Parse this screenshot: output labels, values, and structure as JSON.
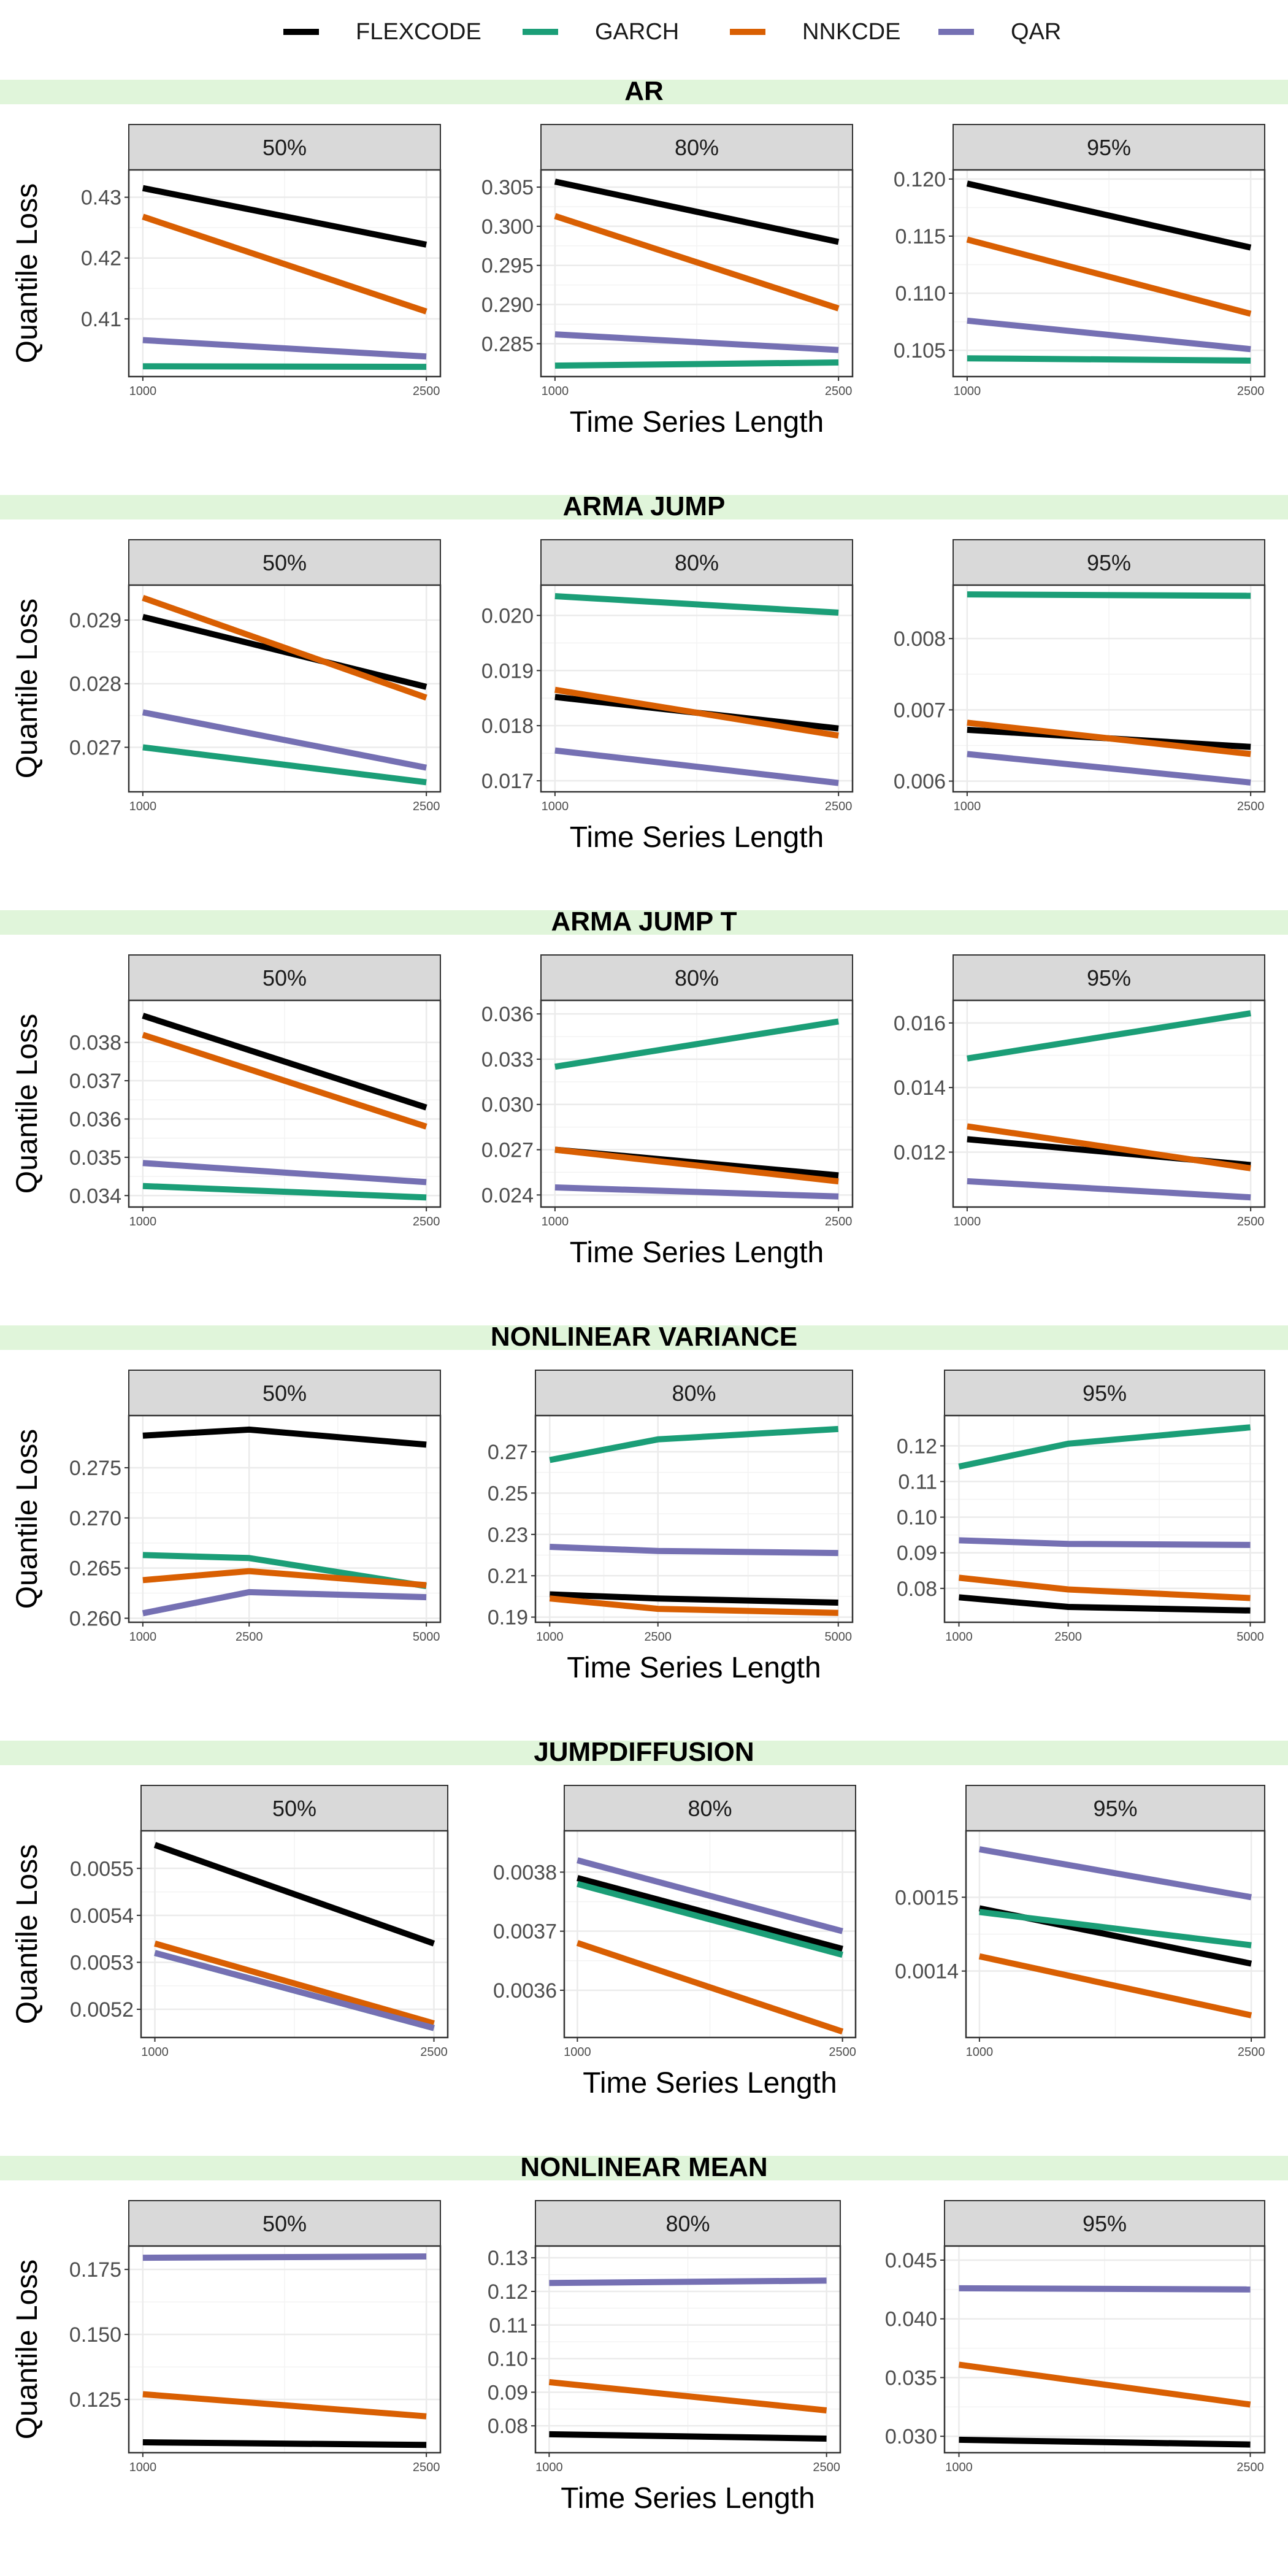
{
  "legend": {
    "entries": [
      {
        "name": "FLEXCODE",
        "color": "#000000"
      },
      {
        "name": "GARCH",
        "color": "#1B9E77"
      },
      {
        "name": "NNKCDE",
        "color": "#D95F02"
      },
      {
        "name": "QAR",
        "color": "#7570B3"
      }
    ],
    "placement": "top"
  },
  "colors": {
    "strip_bg": "#D9D9D9",
    "section_band": "#E0F5DA",
    "grid": "#EBEBEB",
    "panel_border": "#333333"
  },
  "axis_text": {
    "ylabel": "Quantile Loss",
    "xlabel": "Time Series Length"
  },
  "chart_data": [
    {
      "type": "line",
      "title": "AR",
      "facet_labels": [
        "50%",
        "80%",
        "95%"
      ],
      "x": [
        1000,
        2500
      ],
      "xticks": [
        "1000",
        "2500"
      ],
      "panels": [
        {
          "label": "50%",
          "ylim": [
            0.4005,
            0.4345
          ],
          "yticks": [
            0.41,
            0.42,
            0.43
          ],
          "yticklabels": [
            "0.41",
            "0.42",
            "0.43"
          ],
          "series": [
            {
              "name": "FLEXCODE",
              "values": [
                0.4315,
                0.4222
              ]
            },
            {
              "name": "GARCH",
              "values": [
                0.4022,
                0.4021
              ]
            },
            {
              "name": "NNKCDE",
              "values": [
                0.4268,
                0.4112
              ]
            },
            {
              "name": "QAR",
              "values": [
                0.4065,
                0.4038
              ]
            }
          ]
        },
        {
          "label": "80%",
          "ylim": [
            0.2808,
            0.3072
          ],
          "yticks": [
            0.285,
            0.29,
            0.295,
            0.3,
            0.305
          ],
          "yticklabels": [
            "0.285",
            "0.290",
            "0.295",
            "0.300",
            "0.305"
          ],
          "series": [
            {
              "name": "FLEXCODE",
              "values": [
                0.3057,
                0.298
              ]
            },
            {
              "name": "GARCH",
              "values": [
                0.2822,
                0.2826
              ]
            },
            {
              "name": "NNKCDE",
              "values": [
                0.3013,
                0.2895
              ]
            },
            {
              "name": "QAR",
              "values": [
                0.2862,
                0.2842
              ]
            }
          ]
        },
        {
          "label": "95%",
          "ylim": [
            0.1027,
            0.1208
          ],
          "yticks": [
            0.105,
            0.11,
            0.115,
            0.12
          ],
          "yticklabels": [
            "0.105",
            "0.110",
            "0.115",
            "0.120"
          ],
          "series": [
            {
              "name": "FLEXCODE",
              "values": [
                0.1196,
                0.114
              ]
            },
            {
              "name": "GARCH",
              "values": [
                0.1043,
                0.1041
              ]
            },
            {
              "name": "NNKCDE",
              "values": [
                0.1147,
                0.1082
              ]
            },
            {
              "name": "QAR",
              "values": [
                0.1076,
                0.1051
              ]
            }
          ]
        }
      ]
    },
    {
      "type": "line",
      "title": "ARMA JUMP",
      "facet_labels": [
        "50%",
        "80%",
        "95%"
      ],
      "x": [
        1000,
        2500
      ],
      "xticks": [
        "1000",
        "2500"
      ],
      "panels": [
        {
          "label": "50%",
          "ylim": [
            0.0263,
            0.02955
          ],
          "yticks": [
            0.027,
            0.028,
            0.029
          ],
          "yticklabels": [
            "0.027",
            "0.028",
            "0.029"
          ],
          "series": [
            {
              "name": "FLEXCODE",
              "values": [
                0.02905,
                0.02795
              ]
            },
            {
              "name": "GARCH",
              "values": [
                0.027,
                0.02645
              ]
            },
            {
              "name": "NNKCDE",
              "values": [
                0.02935,
                0.02778
              ]
            },
            {
              "name": "QAR",
              "values": [
                0.02755,
                0.02668
              ]
            }
          ]
        },
        {
          "label": "80%",
          "ylim": [
            0.0168,
            0.02055
          ],
          "yticks": [
            0.017,
            0.018,
            0.019,
            0.02
          ],
          "yticklabels": [
            "0.017",
            "0.018",
            "0.019",
            "0.020"
          ],
          "series": [
            {
              "name": "FLEXCODE",
              "values": [
                0.01852,
                0.01795
              ]
            },
            {
              "name": "GARCH",
              "values": [
                0.02035,
                0.02005
              ]
            },
            {
              "name": "NNKCDE",
              "values": [
                0.01865,
                0.01782
              ]
            },
            {
              "name": "QAR",
              "values": [
                0.01755,
                0.01696
              ]
            }
          ]
        },
        {
          "label": "95%",
          "ylim": [
            0.00585,
            0.00875
          ],
          "yticks": [
            0.006,
            0.007,
            0.008
          ],
          "yticklabels": [
            "0.006",
            "0.007",
            "0.008"
          ],
          "series": [
            {
              "name": "FLEXCODE",
              "values": [
                0.00672,
                0.00648
              ]
            },
            {
              "name": "GARCH",
              "values": [
                0.00862,
                0.0086
              ]
            },
            {
              "name": "NNKCDE",
              "values": [
                0.00682,
                0.00638
              ]
            },
            {
              "name": "QAR",
              "values": [
                0.00638,
                0.00598
              ]
            }
          ]
        }
      ]
    },
    {
      "type": "line",
      "title": "ARMA JUMP T",
      "facet_labels": [
        "50%",
        "80%",
        "95%"
      ],
      "x": [
        1000,
        2500
      ],
      "xticks": [
        "1000",
        "2500"
      ],
      "panels": [
        {
          "label": "50%",
          "ylim": [
            0.0337,
            0.0391
          ],
          "yticks": [
            0.034,
            0.035,
            0.036,
            0.037,
            0.038
          ],
          "yticklabels": [
            "0.034",
            "0.035",
            "0.036",
            "0.037",
            "0.038"
          ],
          "series": [
            {
              "name": "FLEXCODE",
              "values": [
                0.0387,
                0.0363
              ]
            },
            {
              "name": "GARCH",
              "values": [
                0.03425,
                0.03395
              ]
            },
            {
              "name": "NNKCDE",
              "values": [
                0.0382,
                0.0358
              ]
            },
            {
              "name": "QAR",
              "values": [
                0.03485,
                0.03435
              ]
            }
          ]
        },
        {
          "label": "80%",
          "ylim": [
            0.0232,
            0.0369
          ],
          "yticks": [
            0.024,
            0.027,
            0.03,
            0.033,
            0.036
          ],
          "yticklabels": [
            "0.024",
            "0.027",
            "0.030",
            "0.033",
            "0.036"
          ],
          "series": [
            {
              "name": "FLEXCODE",
              "values": [
                0.027,
                0.0253
              ]
            },
            {
              "name": "GARCH",
              "values": [
                0.0325,
                0.0355
              ]
            },
            {
              "name": "NNKCDE",
              "values": [
                0.027,
                0.0249
              ]
            },
            {
              "name": "QAR",
              "values": [
                0.0245,
                0.0239
              ]
            }
          ]
        },
        {
          "label": "95%",
          "ylim": [
            0.0103,
            0.0167
          ],
          "yticks": [
            0.012,
            0.014,
            0.016
          ],
          "yticklabels": [
            "0.012",
            "0.014",
            "0.016"
          ],
          "series": [
            {
              "name": "FLEXCODE",
              "values": [
                0.0124,
                0.0116
              ]
            },
            {
              "name": "GARCH",
              "values": [
                0.0149,
                0.0163
              ]
            },
            {
              "name": "NNKCDE",
              "values": [
                0.0128,
                0.0115
              ]
            },
            {
              "name": "QAR",
              "values": [
                0.0111,
                0.0106
              ]
            }
          ]
        }
      ]
    },
    {
      "type": "line",
      "title": "NONLINEAR VARIANCE",
      "facet_labels": [
        "50%",
        "80%",
        "95%"
      ],
      "x": [
        1000,
        2500,
        5000
      ],
      "xticks": [
        "1000",
        "2500",
        "5000"
      ],
      "panels": [
        {
          "label": "50%",
          "ylim": [
            0.2596,
            0.2802
          ],
          "yticks": [
            0.26,
            0.265,
            0.27,
            0.275
          ],
          "yticklabels": [
            "0.260",
            "0.265",
            "0.270",
            "0.275"
          ],
          "series": [
            {
              "name": "FLEXCODE",
              "values": [
                0.2782,
                0.2788,
                0.2773
              ]
            },
            {
              "name": "GARCH",
              "values": [
                0.2663,
                0.266,
                0.2632
              ]
            },
            {
              "name": "NNKCDE",
              "values": [
                0.2638,
                0.2647,
                0.2633
              ]
            },
            {
              "name": "QAR",
              "values": [
                0.2605,
                0.2626,
                0.2621
              ]
            }
          ]
        },
        {
          "label": "80%",
          "ylim": [
            0.1875,
            0.2875
          ],
          "yticks": [
            0.19,
            0.21,
            0.23,
            0.25,
            0.27
          ],
          "yticklabels": [
            "0.19",
            "0.21",
            "0.23",
            "0.25",
            "0.27"
          ],
          "series": [
            {
              "name": "FLEXCODE",
              "values": [
                0.201,
                0.199,
                0.197
              ]
            },
            {
              "name": "GARCH",
              "values": [
                0.266,
                0.276,
                0.281
              ]
            },
            {
              "name": "NNKCDE",
              "values": [
                0.199,
                0.194,
                0.192
              ]
            },
            {
              "name": "QAR",
              "values": [
                0.224,
                0.222,
                0.221
              ]
            }
          ]
        },
        {
          "label": "95%",
          "ylim": [
            0.0705,
            0.1285
          ],
          "yticks": [
            0.08,
            0.09,
            0.1,
            0.11,
            0.12
          ],
          "yticklabels": [
            "0.08",
            "0.09",
            "0.10",
            "0.11",
            "0.12"
          ],
          "series": [
            {
              "name": "FLEXCODE",
              "values": [
                0.0775,
                0.0748,
                0.0738
              ]
            },
            {
              "name": "GARCH",
              "values": [
                0.1142,
                0.1206,
                0.1252
              ]
            },
            {
              "name": "NNKCDE",
              "values": [
                0.083,
                0.0797,
                0.0773
              ]
            },
            {
              "name": "QAR",
              "values": [
                0.0935,
                0.0925,
                0.0922
              ]
            }
          ]
        }
      ]
    },
    {
      "type": "line",
      "title": "JUMPDIFFUSION",
      "facet_labels": [
        "50%",
        "80%",
        "95%"
      ],
      "x": [
        1000,
        2500
      ],
      "xticks": [
        "1000",
        "2500"
      ],
      "panels": [
        {
          "label": "50%",
          "ylim": [
            0.00514,
            0.00558
          ],
          "yticks": [
            0.0052,
            0.0053,
            0.0054,
            0.0055
          ],
          "yticklabels": [
            "0.0052",
            "0.0053",
            "0.0054",
            "0.0055"
          ],
          "series": [
            {
              "name": "FLEXCODE",
              "values": [
                0.00555,
                0.00534
              ]
            },
            {
              "name": "GARCH",
              "values": [
                0.00532,
                0.00516
              ]
            },
            {
              "name": "NNKCDE",
              "values": [
                0.00534,
                0.00517
              ]
            },
            {
              "name": "QAR",
              "values": [
                0.00532,
                0.00516
              ]
            }
          ]
        },
        {
          "label": "80%",
          "ylim": [
            0.00352,
            0.00387
          ],
          "yticks": [
            0.0036,
            0.0037,
            0.0038
          ],
          "yticklabels": [
            "0.0036",
            "0.0037",
            "0.0038"
          ],
          "series": [
            {
              "name": "FLEXCODE",
              "values": [
                0.00379,
                0.00367
              ]
            },
            {
              "name": "GARCH",
              "values": [
                0.00378,
                0.00366
              ]
            },
            {
              "name": "NNKCDE",
              "values": [
                0.00368,
                0.00353
              ]
            },
            {
              "name": "QAR",
              "values": [
                0.00382,
                0.0037
              ]
            }
          ]
        },
        {
          "label": "95%",
          "ylim": [
            0.00131,
            0.00159
          ],
          "yticks": [
            0.0014,
            0.0015
          ],
          "yticklabels": [
            "0.0014",
            "0.0015"
          ],
          "series": [
            {
              "name": "FLEXCODE",
              "values": [
                0.001485,
                0.00141
              ]
            },
            {
              "name": "GARCH",
              "values": [
                0.00148,
                0.001435
              ]
            },
            {
              "name": "NNKCDE",
              "values": [
                0.00142,
                0.00134
              ]
            },
            {
              "name": "QAR",
              "values": [
                0.001565,
                0.0015
              ]
            }
          ]
        }
      ]
    },
    {
      "type": "line",
      "title": "NONLINEAR MEAN",
      "facet_labels": [
        "50%",
        "80%",
        "95%"
      ],
      "x": [
        1000,
        2500
      ],
      "xticks": [
        "1000",
        "2500"
      ],
      "panels": [
        {
          "label": "50%",
          "ylim": [
            0.1045,
            0.184
          ],
          "yticks": [
            0.125,
            0.15,
            0.175
          ],
          "yticklabels": [
            "0.125",
            "0.150",
            "0.175"
          ],
          "series": [
            {
              "name": "FLEXCODE",
              "values": [
                0.1085,
                0.1075
              ]
            },
            {
              "name": "NNKCDE",
              "values": [
                0.127,
                0.1185
              ]
            },
            {
              "name": "QAR",
              "values": [
                0.1795,
                0.18
              ]
            }
          ]
        },
        {
          "label": "80%",
          "ylim": [
            0.072,
            0.1335
          ],
          "yticks": [
            0.08,
            0.09,
            0.1,
            0.11,
            0.12,
            0.13
          ],
          "yticklabels": [
            "0.08",
            "0.09",
            "0.10",
            "0.11",
            "0.12",
            "0.13"
          ],
          "series": [
            {
              "name": "FLEXCODE",
              "values": [
                0.0775,
                0.0762
              ]
            },
            {
              "name": "NNKCDE",
              "values": [
                0.093,
                0.0846
              ]
            },
            {
              "name": "QAR",
              "values": [
                0.1225,
                0.1232
              ]
            }
          ]
        },
        {
          "label": "95%",
          "ylim": [
            0.0286,
            0.0462
          ],
          "yticks": [
            0.03,
            0.035,
            0.04,
            0.045
          ],
          "yticklabels": [
            "0.030",
            "0.035",
            "0.040",
            "0.045"
          ],
          "series": [
            {
              "name": "FLEXCODE",
              "values": [
                0.0297,
                0.0293
              ]
            },
            {
              "name": "NNKCDE",
              "values": [
                0.0361,
                0.0327
              ]
            },
            {
              "name": "QAR",
              "values": [
                0.0426,
                0.0425
              ]
            }
          ]
        }
      ]
    }
  ]
}
